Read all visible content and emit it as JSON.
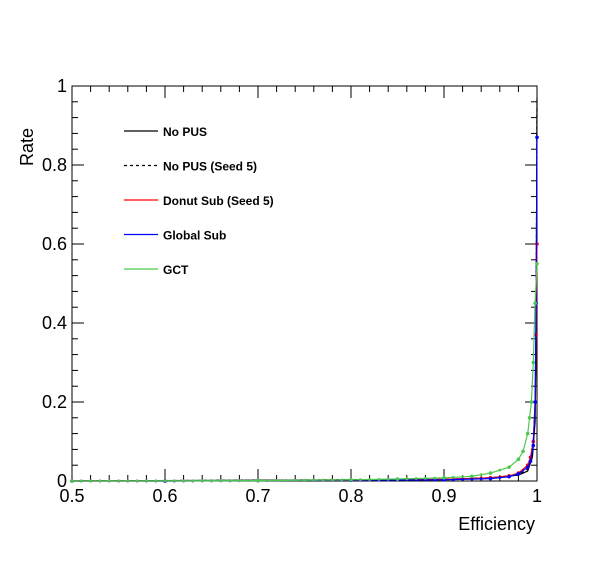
{
  "chart_data": {
    "type": "line",
    "title": "",
    "xlabel": "Efficiency",
    "ylabel": "Rate",
    "xlim": [
      0.5,
      1.0
    ],
    "ylim": [
      0,
      1.0
    ],
    "x_ticks": [
      "0.5",
      "0.6",
      "0.7",
      "0.8",
      "0.9",
      "1"
    ],
    "y_ticks": [
      "0",
      "0.2",
      "0.4",
      "0.6",
      "0.8",
      "1"
    ],
    "grid": false,
    "legend_position": "top-left",
    "series": [
      {
        "name": "No PUS",
        "color": "#000000",
        "dash": "solid",
        "markers": false,
        "points": [
          [
            0.5,
            0.0
          ],
          [
            0.9,
            0.004
          ],
          [
            0.95,
            0.008
          ],
          [
            0.98,
            0.015
          ],
          [
            0.99,
            0.025
          ],
          [
            0.995,
            0.06
          ],
          [
            0.998,
            0.15
          ],
          [
            0.999,
            0.35
          ],
          [
            1.0,
            0.97
          ]
        ]
      },
      {
        "name": "No PUS (Seed 5)",
        "color": "#000000",
        "dash": "dashed",
        "markers": false,
        "points": [
          [
            0.5,
            0.0
          ],
          [
            0.9,
            0.004
          ],
          [
            0.95,
            0.008
          ],
          [
            0.98,
            0.015
          ],
          [
            0.99,
            0.03
          ],
          [
            0.995,
            0.07
          ],
          [
            0.998,
            0.18
          ],
          [
            0.999,
            0.4
          ],
          [
            1.0,
            0.95
          ]
        ]
      },
      {
        "name": "Donut Sub (Seed 5)",
        "color": "#ff0000",
        "dash": "solid",
        "markers": true,
        "points": [
          [
            0.5,
            0.0
          ],
          [
            0.6,
            0.0
          ],
          [
            0.7,
            0.001
          ],
          [
            0.8,
            0.002
          ],
          [
            0.9,
            0.004
          ],
          [
            0.95,
            0.008
          ],
          [
            0.97,
            0.013
          ],
          [
            0.98,
            0.02
          ],
          [
            0.99,
            0.04
          ],
          [
            0.993,
            0.06
          ],
          [
            0.996,
            0.1
          ],
          [
            0.998,
            0.2
          ],
          [
            0.999,
            0.37
          ],
          [
            1.0,
            0.6
          ]
        ]
      },
      {
        "name": "Global Sub",
        "color": "#0000ff",
        "dash": "solid",
        "markers": true,
        "points": [
          [
            0.5,
            0.0
          ],
          [
            0.6,
            0.0
          ],
          [
            0.7,
            0.001
          ],
          [
            0.8,
            0.002
          ],
          [
            0.9,
            0.003
          ],
          [
            0.95,
            0.006
          ],
          [
            0.97,
            0.011
          ],
          [
            0.98,
            0.018
          ],
          [
            0.99,
            0.035
          ],
          [
            0.993,
            0.05
          ],
          [
            0.996,
            0.09
          ],
          [
            0.998,
            0.2
          ],
          [
            0.999,
            0.45
          ],
          [
            1.0,
            0.87
          ]
        ]
      },
      {
        "name": "GCT",
        "color": "#4cc94c",
        "dash": "solid",
        "markers": true,
        "points": [
          [
            0.5,
            0.0
          ],
          [
            0.7,
            0.001
          ],
          [
            0.8,
            0.003
          ],
          [
            0.85,
            0.005
          ],
          [
            0.9,
            0.008
          ],
          [
            0.93,
            0.012
          ],
          [
            0.95,
            0.02
          ],
          [
            0.97,
            0.035
          ],
          [
            0.98,
            0.055
          ],
          [
            0.985,
            0.075
          ],
          [
            0.99,
            0.12
          ],
          [
            0.992,
            0.16
          ],
          [
            0.994,
            0.2
          ],
          [
            0.996,
            0.3
          ],
          [
            0.998,
            0.45
          ],
          [
            1.0,
            0.55
          ]
        ]
      }
    ]
  }
}
